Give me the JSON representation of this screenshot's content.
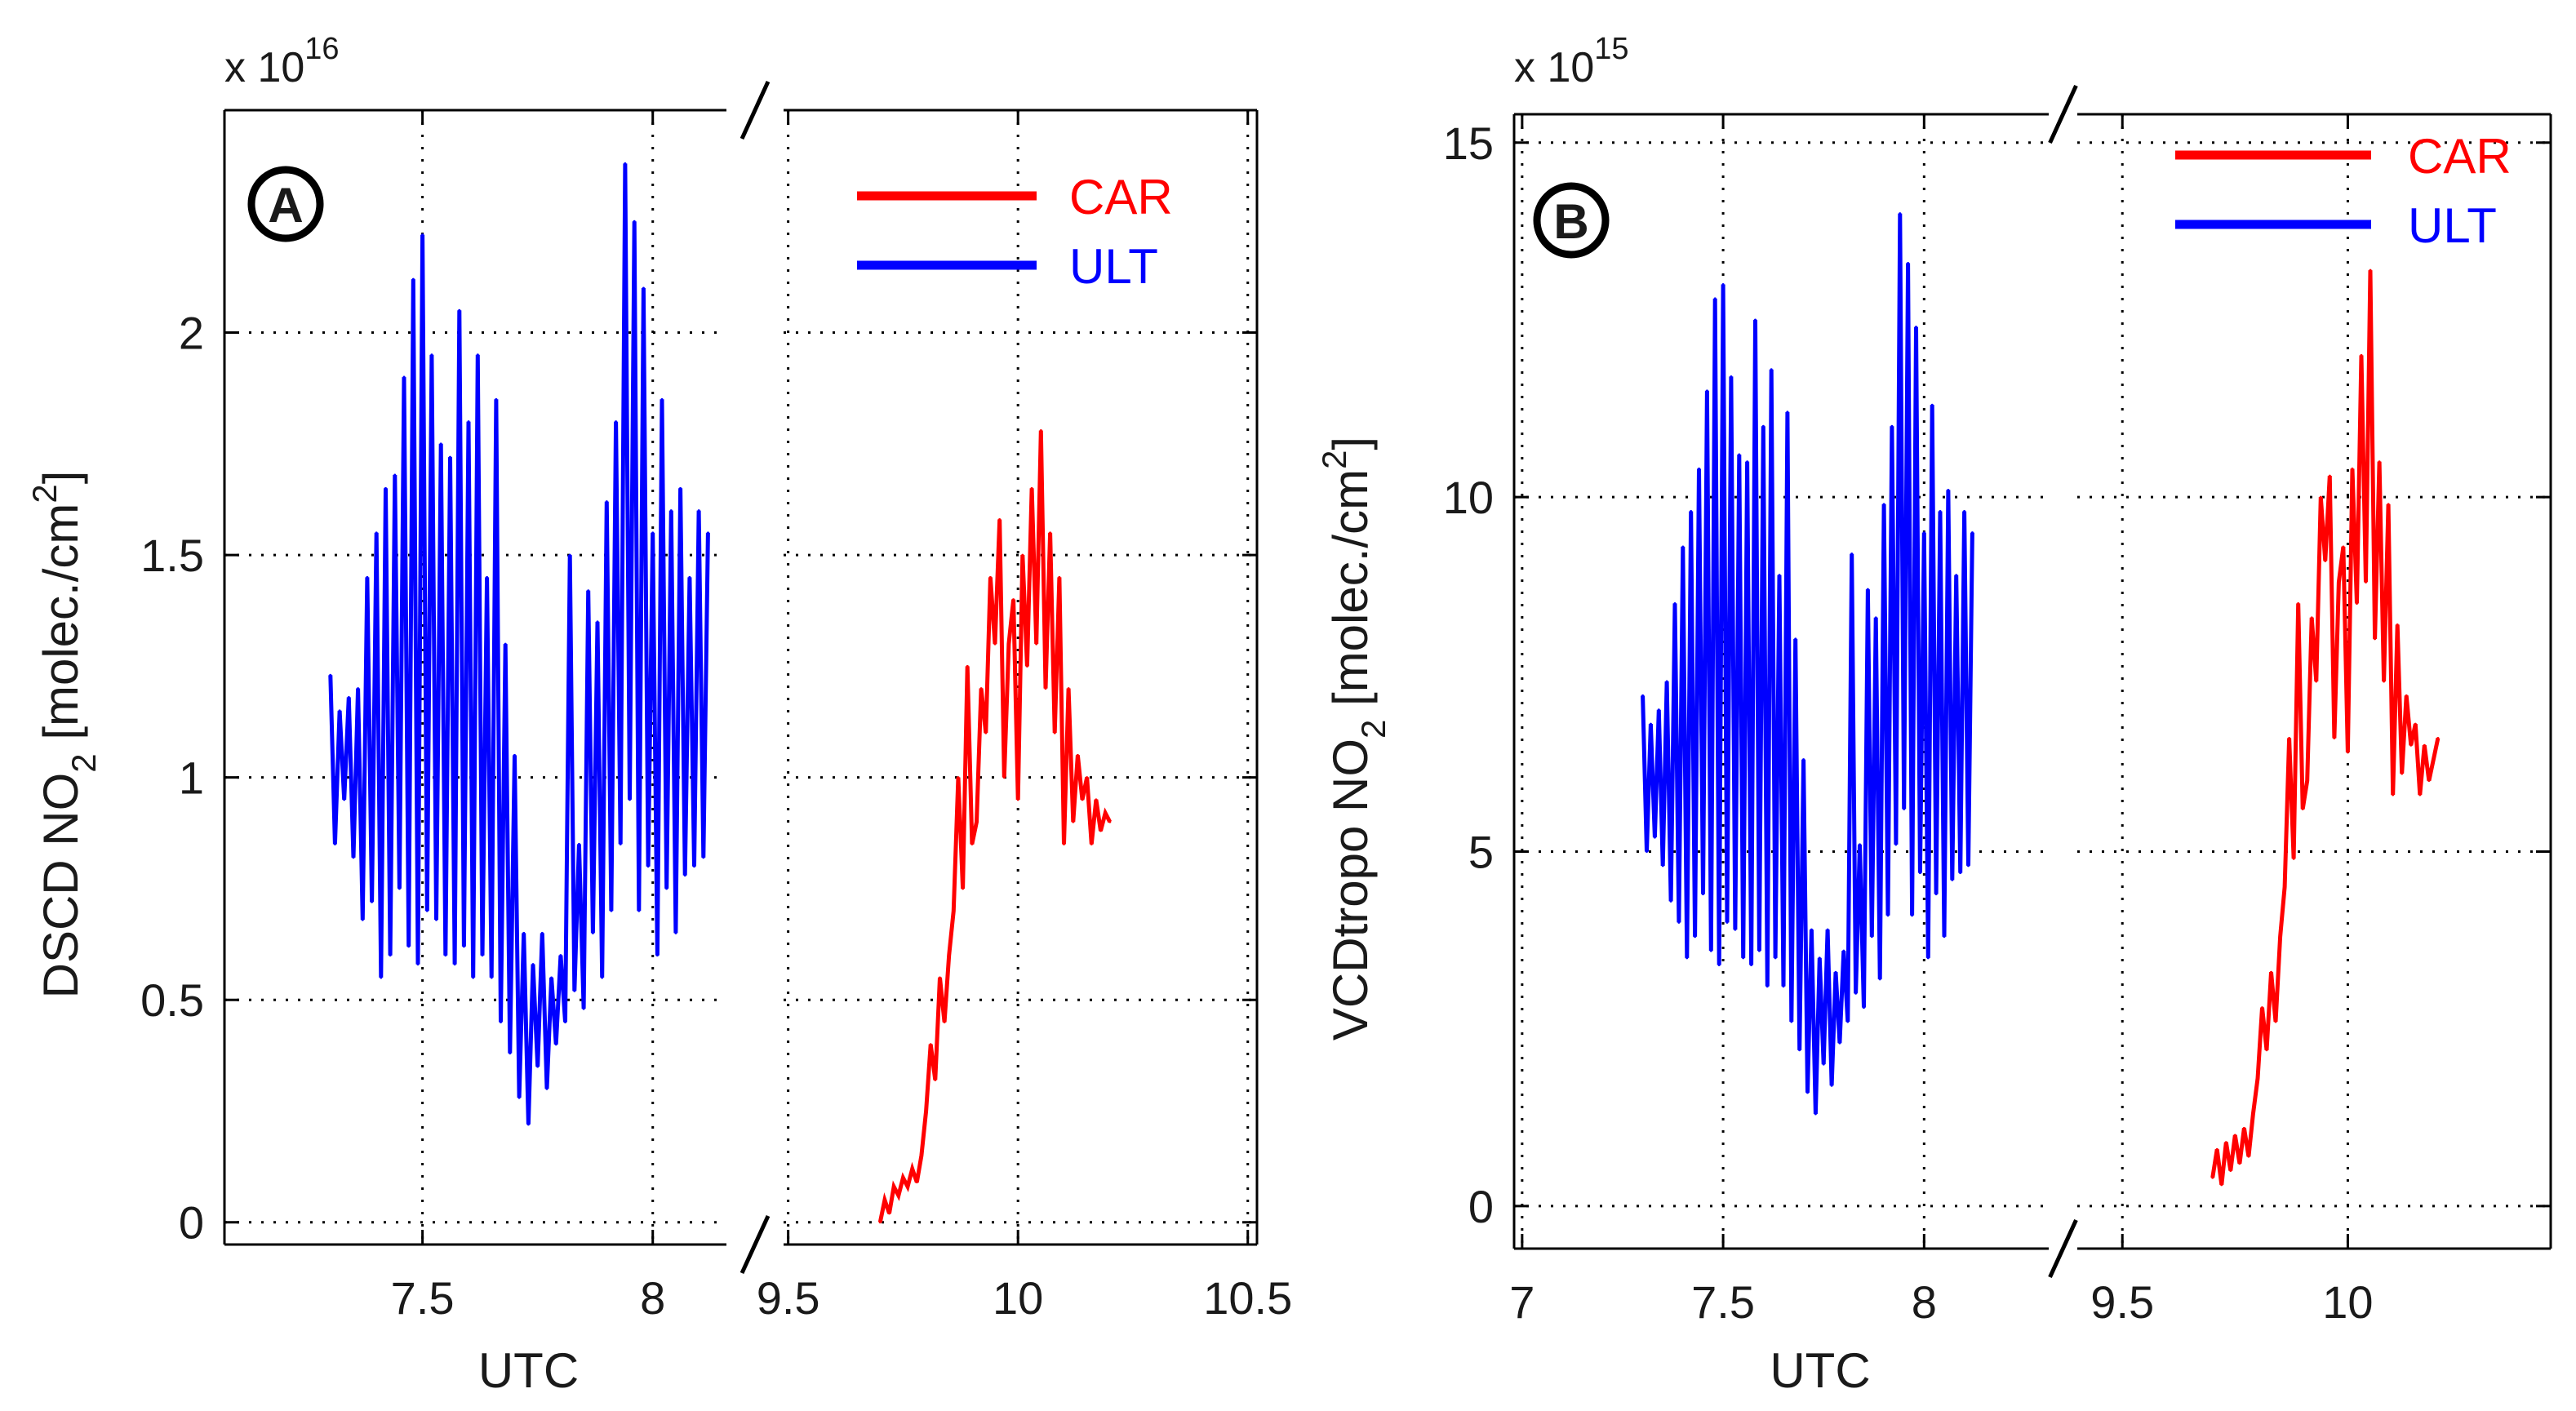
{
  "chart_data": [
    {
      "id": "A",
      "type": "line",
      "badge": "A",
      "xlabel": "UTC",
      "ylabel_main": "DSCD NO",
      "ylabel_sub": "2",
      "ylabel_unit": " [molec./cm",
      "ylabel_sup": "2",
      "ylabel_end": "]",
      "multiplier_base": "x 10",
      "multiplier_exp": "16",
      "axis_break": "7.5–8 | 9.5–10.5",
      "grid": true,
      "ylim": [
        -0.05,
        2.5
      ],
      "yticks": [
        0,
        0.5,
        1,
        1.5,
        2
      ],
      "ytick_labels": [
        "0",
        "0.5",
        "1",
        "1.5",
        "2"
      ],
      "segments": [
        {
          "xlim": [
            7.07,
            8.16
          ],
          "xticks": [
            7.5,
            8
          ],
          "xtick_labels": [
            "7.5",
            "8"
          ]
        },
        {
          "xlim": [
            9.49,
            10.52
          ],
          "xticks": [
            9.5,
            10,
            10.5
          ],
          "xtick_labels": [
            "9.5",
            "10",
            "10.5"
          ]
        }
      ],
      "legend": [
        {
          "label": "CAR",
          "color": "#ff0000"
        },
        {
          "label": "ULT",
          "color": "#0000ff"
        }
      ],
      "series": [
        {
          "name": "ULT",
          "color": "#0000ff",
          "x": [
            7.3,
            7.31,
            7.32,
            7.33,
            7.34,
            7.35,
            7.36,
            7.37,
            7.38,
            7.39,
            7.4,
            7.41,
            7.42,
            7.43,
            7.44,
            7.45,
            7.46,
            7.47,
            7.48,
            7.49,
            7.5,
            7.51,
            7.52,
            7.53,
            7.54,
            7.55,
            7.56,
            7.57,
            7.58,
            7.59,
            7.6,
            7.61,
            7.62,
            7.63,
            7.64,
            7.65,
            7.66,
            7.67,
            7.68,
            7.69,
            7.7,
            7.71,
            7.72,
            7.73,
            7.74,
            7.75,
            7.76,
            7.77,
            7.78,
            7.79,
            7.8,
            7.81,
            7.82,
            7.83,
            7.84,
            7.85,
            7.86,
            7.87,
            7.88,
            7.89,
            7.9,
            7.91,
            7.92,
            7.93,
            7.94,
            7.95,
            7.96,
            7.97,
            7.98,
            7.99,
            8.0,
            8.01,
            8.02,
            8.03,
            8.04,
            8.05,
            8.06,
            8.07,
            8.08,
            8.09,
            8.1,
            8.11,
            8.12
          ],
          "values": [
            1.23,
            0.85,
            1.15,
            0.95,
            1.18,
            0.82,
            1.2,
            0.68,
            1.45,
            0.72,
            1.55,
            0.55,
            1.65,
            0.6,
            1.68,
            0.75,
            1.9,
            0.62,
            2.12,
            0.58,
            2.22,
            0.7,
            1.95,
            0.68,
            1.75,
            0.6,
            1.72,
            0.58,
            2.05,
            0.62,
            1.8,
            0.55,
            1.95,
            0.6,
            1.45,
            0.55,
            1.85,
            0.45,
            1.3,
            0.38,
            1.05,
            0.28,
            0.65,
            0.22,
            0.58,
            0.35,
            0.65,
            0.3,
            0.55,
            0.4,
            0.6,
            0.45,
            1.5,
            0.52,
            0.85,
            0.48,
            1.42,
            0.65,
            1.35,
            0.55,
            1.62,
            0.7,
            1.8,
            0.85,
            2.38,
            0.95,
            2.25,
            0.7,
            2.1,
            0.8,
            1.55,
            0.6,
            1.85,
            0.75,
            1.6,
            0.65,
            1.65,
            0.78,
            1.45,
            0.8,
            1.6,
            0.82,
            1.55
          ]
        },
        {
          "name": "CAR",
          "color": "#ff0000",
          "x": [
            9.7,
            9.71,
            9.72,
            9.73,
            9.74,
            9.75,
            9.76,
            9.77,
            9.78,
            9.79,
            9.8,
            9.81,
            9.82,
            9.83,
            9.84,
            9.85,
            9.86,
            9.87,
            9.88,
            9.89,
            9.9,
            9.91,
            9.92,
            9.93,
            9.94,
            9.95,
            9.96,
            9.97,
            9.98,
            9.99,
            10.0,
            10.01,
            10.02,
            10.03,
            10.04,
            10.05,
            10.06,
            10.07,
            10.08,
            10.09,
            10.1,
            10.11,
            10.12,
            10.13,
            10.14,
            10.15,
            10.16,
            10.17,
            10.18,
            10.19,
            10.2
          ],
          "values": [
            0.0,
            0.05,
            0.02,
            0.08,
            0.06,
            0.1,
            0.08,
            0.12,
            0.09,
            0.15,
            0.25,
            0.4,
            0.32,
            0.55,
            0.45,
            0.6,
            0.7,
            1.0,
            0.75,
            1.25,
            0.85,
            0.9,
            1.2,
            1.1,
            1.45,
            1.3,
            1.58,
            1.0,
            1.3,
            1.4,
            0.95,
            1.5,
            1.25,
            1.65,
            1.3,
            1.78,
            1.2,
            1.55,
            1.1,
            1.45,
            0.85,
            1.2,
            0.9,
            1.05,
            0.95,
            1.0,
            0.85,
            0.95,
            0.88,
            0.92,
            0.9
          ]
        }
      ]
    },
    {
      "id": "B",
      "type": "line",
      "badge": "B",
      "xlabel": "UTC",
      "ylabel_main": "VCDtropo NO",
      "ylabel_sub": "2",
      "ylabel_unit": " [molec./cm",
      "ylabel_sup": "2",
      "ylabel_end": "]",
      "multiplier_base": "x 10",
      "multiplier_exp": "15",
      "axis_break": "7–8 | 9.5–10.5",
      "grid": true,
      "ylim": [
        -0.6,
        15.4
      ],
      "yticks": [
        0,
        5,
        10,
        15
      ],
      "ytick_labels": [
        "0",
        "5",
        "10",
        "15"
      ],
      "segments": [
        {
          "xlim": [
            6.98,
            8.31
          ],
          "xticks": [
            7,
            7.5,
            8
          ],
          "xtick_labels": [
            "7",
            "7.5",
            "8"
          ]
        },
        {
          "xlim": [
            9.4,
            10.45
          ],
          "xticks": [
            9.5,
            10
          ],
          "xtick_labels": [
            "9.5",
            "10"
          ]
        }
      ],
      "legend": [
        {
          "label": "CAR",
          "color": "#ff0000"
        },
        {
          "label": "ULT",
          "color": "#0000ff"
        }
      ],
      "series": [
        {
          "name": "ULT",
          "color": "#0000ff",
          "x": [
            7.3,
            7.31,
            7.32,
            7.33,
            7.34,
            7.35,
            7.36,
            7.37,
            7.38,
            7.39,
            7.4,
            7.41,
            7.42,
            7.43,
            7.44,
            7.45,
            7.46,
            7.47,
            7.48,
            7.49,
            7.5,
            7.51,
            7.52,
            7.53,
            7.54,
            7.55,
            7.56,
            7.57,
            7.58,
            7.59,
            7.6,
            7.61,
            7.62,
            7.63,
            7.64,
            7.65,
            7.66,
            7.67,
            7.68,
            7.69,
            7.7,
            7.71,
            7.72,
            7.73,
            7.74,
            7.75,
            7.76,
            7.77,
            7.78,
            7.79,
            7.8,
            7.81,
            7.82,
            7.83,
            7.84,
            7.85,
            7.86,
            7.87,
            7.88,
            7.89,
            7.9,
            7.91,
            7.92,
            7.93,
            7.94,
            7.95,
            7.96,
            7.97,
            7.98,
            7.99,
            8.0,
            8.01,
            8.02,
            8.03,
            8.04,
            8.05,
            8.06,
            8.07,
            8.08,
            8.09,
            8.1,
            8.11,
            8.12
          ],
          "values": [
            7.2,
            5.0,
            6.8,
            5.2,
            7.0,
            4.8,
            7.4,
            4.3,
            8.5,
            4.0,
            9.3,
            3.5,
            9.8,
            3.8,
            10.4,
            4.4,
            11.5,
            3.6,
            12.8,
            3.4,
            13.0,
            4.0,
            11.7,
            3.9,
            10.6,
            3.5,
            10.5,
            3.4,
            12.5,
            3.6,
            11.0,
            3.1,
            11.8,
            3.5,
            8.9,
            3.1,
            11.2,
            2.6,
            8.0,
            2.2,
            6.3,
            1.6,
            3.9,
            1.3,
            3.5,
            2.0,
            3.9,
            1.7,
            3.3,
            2.3,
            3.6,
            2.6,
            9.2,
            3.0,
            5.1,
            2.8,
            8.7,
            3.8,
            8.3,
            3.2,
            9.9,
            4.1,
            11.0,
            5.1,
            14.0,
            5.6,
            13.3,
            4.1,
            12.4,
            4.7,
            9.5,
            3.5,
            11.3,
            4.4,
            9.8,
            3.8,
            10.1,
            4.6,
            8.9,
            4.7,
            9.8,
            4.8,
            9.5
          ]
        },
        {
          "name": "CAR",
          "color": "#ff0000",
          "x": [
            9.7,
            9.71,
            9.72,
            9.73,
            9.74,
            9.75,
            9.76,
            9.77,
            9.78,
            9.79,
            9.8,
            9.81,
            9.82,
            9.83,
            9.84,
            9.85,
            9.86,
            9.87,
            9.88,
            9.89,
            9.9,
            9.91,
            9.92,
            9.93,
            9.94,
            9.95,
            9.96,
            9.97,
            9.98,
            9.99,
            10.0,
            10.01,
            10.02,
            10.03,
            10.04,
            10.05,
            10.06,
            10.07,
            10.08,
            10.09,
            10.1,
            10.11,
            10.12,
            10.13,
            10.14,
            10.15,
            10.16,
            10.17,
            10.18,
            10.19,
            10.2
          ],
          "values": [
            0.4,
            0.8,
            0.3,
            0.9,
            0.5,
            1.0,
            0.6,
            1.1,
            0.7,
            1.3,
            1.8,
            2.8,
            2.2,
            3.3,
            2.6,
            3.8,
            4.5,
            6.6,
            4.9,
            8.5,
            5.6,
            6.0,
            8.3,
            7.4,
            10.0,
            9.1,
            10.3,
            6.6,
            8.8,
            9.3,
            6.4,
            10.4,
            8.5,
            12.0,
            8.8,
            13.2,
            8.0,
            10.5,
            7.4,
            9.9,
            5.8,
            8.2,
            6.1,
            7.2,
            6.5,
            6.8,
            5.8,
            6.5,
            6.0,
            6.3,
            6.6
          ]
        }
      ]
    }
  ]
}
